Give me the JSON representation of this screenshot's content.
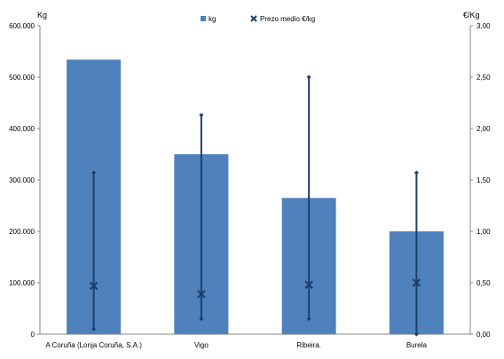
{
  "chart_data": {
    "type": "bar",
    "categories": [
      "A Coruña (Lonja Coruña, S.A.)",
      "Vigo",
      "Ribeira.",
      "Burela"
    ],
    "series": [
      {
        "name": "kg",
        "type": "bar",
        "axis": "left",
        "values": [
          534000,
          350000,
          265000,
          200000
        ],
        "color": "#4f81bd"
      },
      {
        "name": "Prezo medio €/kg",
        "type": "marker",
        "axis": "right",
        "values": [
          0.47,
          0.39,
          0.48,
          0.5
        ],
        "color": "#1f3f6b"
      }
    ],
    "ranges": {
      "axis": "right",
      "min": [
        0.05,
        0.15,
        0.15,
        0.0
      ],
      "max": [
        1.57,
        2.13,
        2.5,
        1.57
      ]
    },
    "ylabel": "Kg",
    "y2label": "€/Kg",
    "ylim": [
      0,
      600000
    ],
    "y2lim": [
      0,
      3
    ],
    "yticks": [
      "0",
      "100.000",
      "200.000",
      "300.000",
      "400.000",
      "500.000",
      "600.000"
    ],
    "y2ticks": [
      "0,00",
      "0,50",
      "1,00",
      "1,50",
      "2,00",
      "2,50",
      "3,00"
    ],
    "legend": {
      "position": "top",
      "entries": [
        "kg",
        "Prezo medio €/kg"
      ]
    },
    "grid": false
  }
}
